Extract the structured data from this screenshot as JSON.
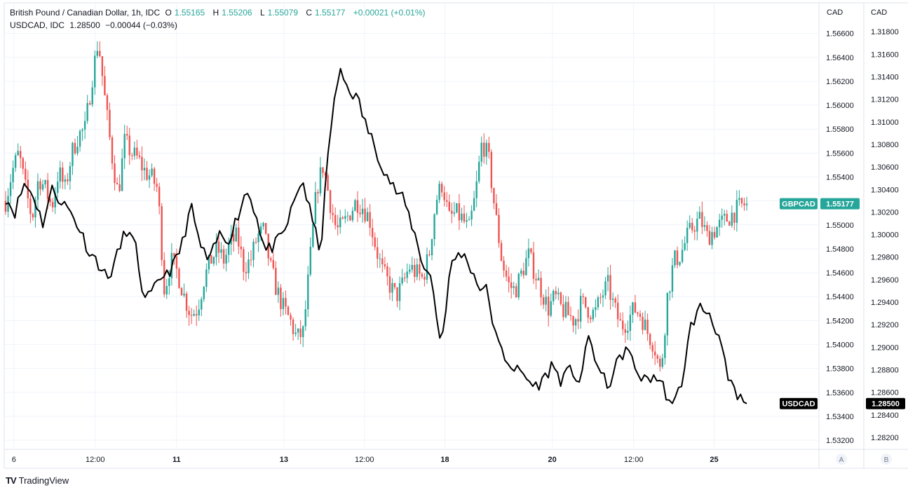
{
  "legend": {
    "main_title": "British Pound / Canadian Dollar, 1h, IDC",
    "o_label": "O",
    "o_value": "1.55165",
    "h_label": "H",
    "h_value": "1.55206",
    "l_label": "L",
    "l_value": "1.55079",
    "c_label": "C",
    "c_value": "1.55177",
    "change": "+0.00021 (+0.01%)",
    "compare_title": "USDCAD, IDC",
    "compare_value": "1.28500",
    "compare_change": "−0.00044 (−0.03%)"
  },
  "branding": {
    "name": "TradingView",
    "logo": "TV"
  },
  "colors": {
    "up": "#26a69a",
    "down": "#ef5350",
    "line": "#000000",
    "grid": "#f0f3fa",
    "axis_text": "#131722"
  },
  "chart_data": {
    "type": "line",
    "x_ticks": [
      "6",
      "12:00",
      "11",
      "13",
      "12:00",
      "18",
      "20",
      "12:00",
      "25"
    ],
    "x_ticks_bold": [
      "11",
      "13",
      "18",
      "20",
      "25"
    ],
    "scales": [
      {
        "id": "A",
        "unit": "CAD",
        "position": "right",
        "ticks": [
          "1.56600",
          "1.56400",
          "1.56200",
          "1.56000",
          "1.55800",
          "1.55600",
          "1.55400",
          "1.55200",
          "1.55000",
          "1.54800",
          "1.54600",
          "1.54400",
          "1.54200",
          "1.54000",
          "1.53800",
          "1.53600",
          "1.53400",
          "1.53200"
        ],
        "ylim": [
          1.5313,
          1.5685
        ]
      },
      {
        "id": "B",
        "unit": "CAD",
        "position": "right",
        "ticks": [
          "1.31800",
          "1.31600",
          "1.31400",
          "1.31200",
          "1.31000",
          "1.30800",
          "1.30600",
          "1.30400",
          "1.30200",
          "1.30000",
          "1.29800",
          "1.29600",
          "1.29400",
          "1.29200",
          "1.29000",
          "1.28800",
          "1.28600",
          "1.28400",
          "1.28200"
        ],
        "ylim": [
          1.281,
          1.3205
        ]
      }
    ],
    "series": [
      {
        "name": "GBPCAD",
        "style": "candlestick",
        "scale": "A",
        "last_value": "1.55177",
        "color": "#26a69a",
        "anchors": [
          1.552,
          1.5545,
          1.556,
          1.553,
          1.5505,
          1.554,
          1.553,
          1.5515,
          1.5545,
          1.553,
          1.556,
          1.5575,
          1.558,
          1.562,
          1.5655,
          1.5605,
          1.556,
          1.5525,
          1.557,
          1.556,
          1.5555,
          1.5545,
          1.554,
          1.553,
          1.5445,
          1.547,
          1.546,
          1.544,
          1.5425,
          1.543,
          1.5455,
          1.547,
          1.548,
          1.547,
          1.5485,
          1.549,
          1.5465,
          1.547,
          1.549,
          1.5495,
          1.5465,
          1.5445,
          1.543,
          1.542,
          1.5405,
          1.541,
          1.547,
          1.553,
          1.555,
          1.552,
          1.5495,
          1.55,
          1.551,
          1.552,
          1.5515,
          1.5505,
          1.548,
          1.546,
          1.545,
          1.544,
          1.545,
          1.5465,
          1.546,
          1.5455,
          1.5475,
          1.552,
          1.5535,
          1.5505,
          1.551,
          1.5505,
          1.5495,
          1.5525,
          1.557,
          1.5555,
          1.551,
          1.547,
          1.545,
          1.5445,
          1.546,
          1.5475,
          1.546,
          1.5445,
          1.543,
          1.544,
          1.543,
          1.5425,
          1.542,
          1.5435,
          1.543,
          1.5425,
          1.544,
          1.545,
          1.543,
          1.5415,
          1.542,
          1.543,
          1.5425,
          1.541,
          1.54,
          1.5375,
          1.544,
          1.547,
          1.5475,
          1.549,
          1.55,
          1.5505,
          1.549,
          1.5495,
          1.55,
          1.5505,
          1.551,
          1.5515,
          1.5518
        ]
      },
      {
        "name": "USDCAD",
        "style": "line",
        "scale": "B",
        "last_value": "1.28500",
        "color": "#000000",
        "anchors": [
          1.3033,
          1.302,
          1.3045,
          1.3035,
          1.301,
          1.304,
          1.303,
          1.302,
          1.3005,
          1.2985,
          1.2975,
          1.296,
          1.298,
          1.3005,
          1.299,
          1.294,
          1.295,
          1.2965,
          1.297,
          1.299,
          1.3025,
          1.299,
          1.2975,
          1.3,
          1.2995,
          1.3015,
          1.304,
          1.302,
          1.2985,
          1.299,
          1.3,
          1.3025,
          1.305,
          1.3015,
          1.2985,
          1.309,
          1.3145,
          1.313,
          1.312,
          1.3095,
          1.3075,
          1.3055,
          1.304,
          1.303,
          1.3005,
          1.2975,
          1.296,
          1.29,
          1.297,
          1.2985,
          1.2975,
          1.2955,
          1.295,
          1.2905,
          1.289,
          1.288,
          1.2875,
          1.2865,
          1.287,
          1.2885,
          1.287,
          1.288,
          1.287,
          1.291,
          1.288,
          1.2865,
          1.2885,
          1.29,
          1.288,
          1.287,
          1.2875,
          1.2865,
          1.2845,
          1.287,
          1.292,
          1.2935,
          1.293,
          1.291,
          1.287,
          1.2855,
          1.285
        ]
      }
    ]
  }
}
